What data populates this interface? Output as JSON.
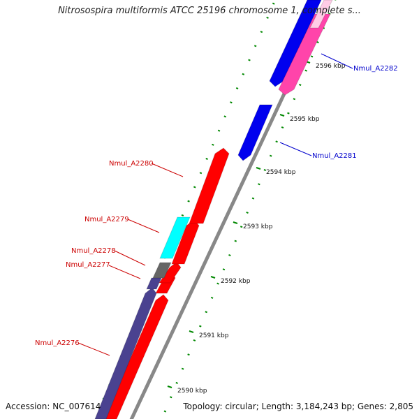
{
  "title": "Nitrosospira multiformis ATCC 25196 chromosome 1, complete s...",
  "footer": {
    "accession": "Accession: NC_007614",
    "summary": "Topology: circular; Length: 3,184,243 bp; Genes: 2,805"
  },
  "scale": {
    "tick_labels": [
      "2590 kbp",
      "2591 kbp",
      "2592 kbp",
      "2593 kbp",
      "2594 kbp",
      "2595 kbp",
      "2596 kbp"
    ]
  },
  "colors": {
    "plus_strand_label": "#cc0000",
    "minus_strand_label": "#0000cc",
    "red": "#ff0000",
    "blue": "#0000ee",
    "cyan": "#00ffff",
    "slate": "#4a4290",
    "gray": "#666666",
    "pink": "#ff44aa",
    "backbone": "#888888",
    "ticks": "#008800"
  },
  "genes": [
    {
      "label": "Nmul_A2276",
      "label_color": "red"
    },
    {
      "label": "Nmul_A2277",
      "label_color": "red"
    },
    {
      "label": "Nmul_A2278",
      "label_color": "red"
    },
    {
      "label": "Nmul_A2279",
      "label_color": "red"
    },
    {
      "label": "Nmul_A2280",
      "label_color": "red"
    },
    {
      "label": "Nmul_A2281",
      "label_color": "blue"
    },
    {
      "label": "Nmul_A2282",
      "label_color": "blue"
    }
  ]
}
